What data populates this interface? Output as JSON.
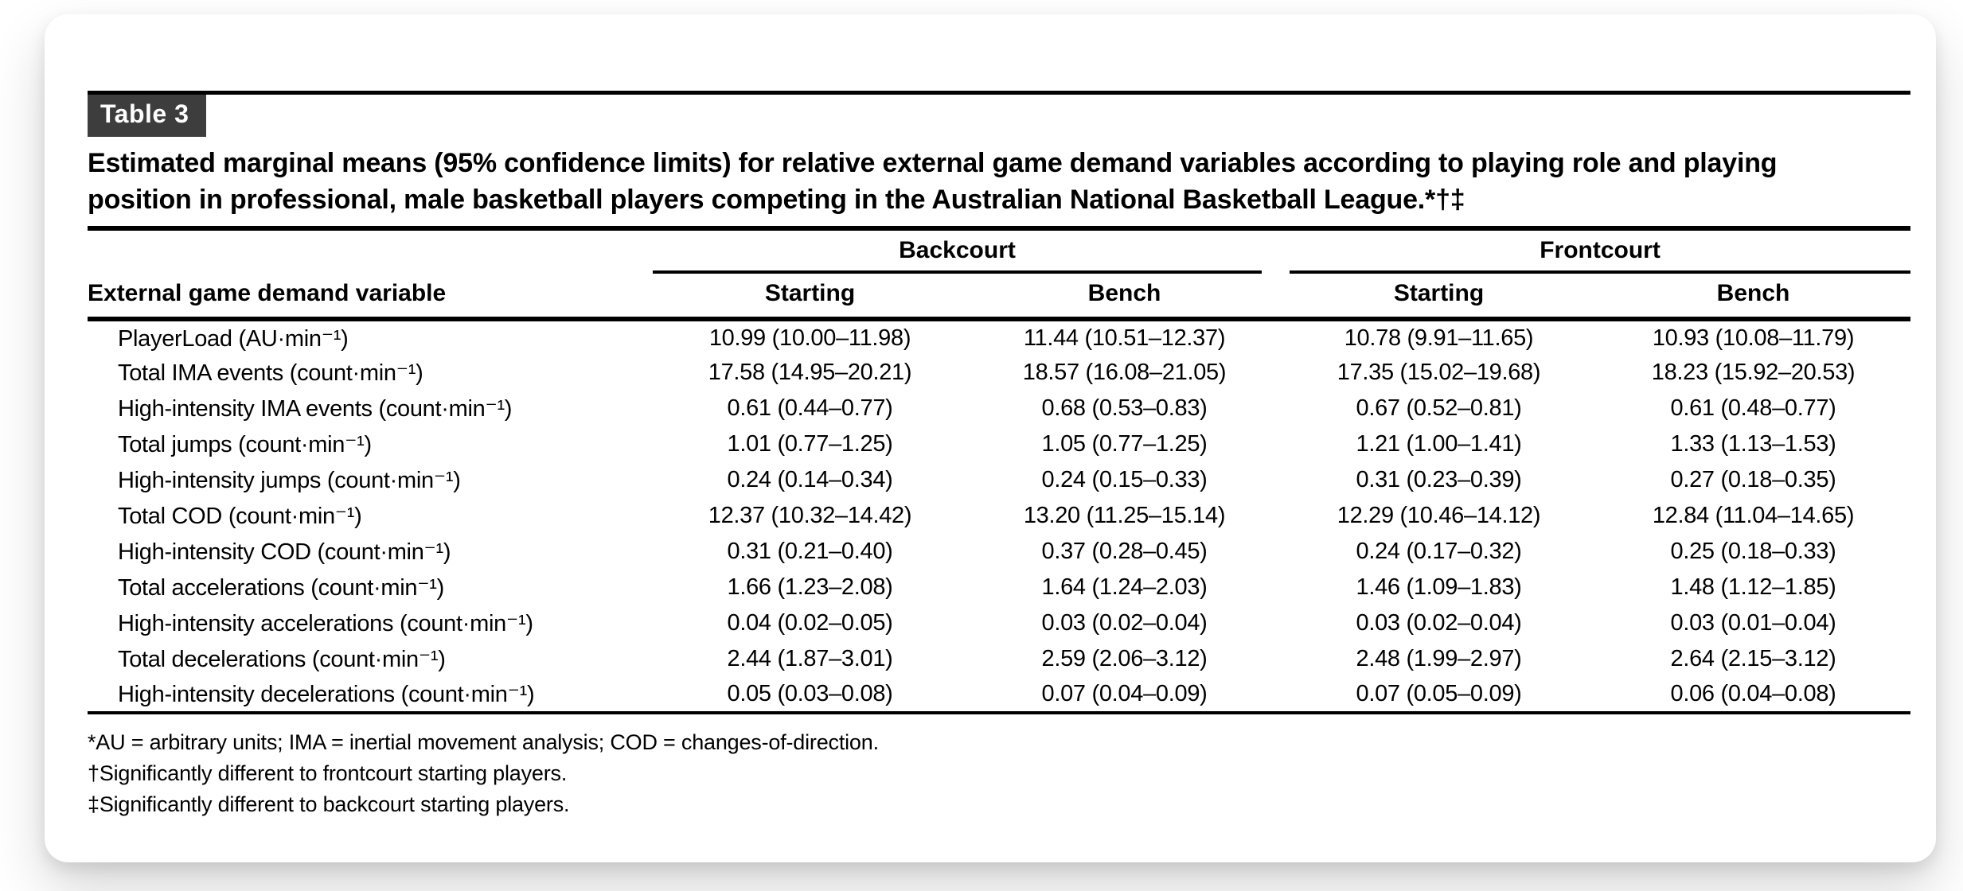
{
  "table": {
    "tag_label": "Table 3",
    "caption_line1": "Estimated marginal means (95% confidence limits) for relative external game demand variables according to playing role and playing",
    "caption_line2": "position in professional, male basketball players competing in the Australian National Basketball League.*†‡",
    "stub_header": "External game demand variable",
    "col_groups": [
      {
        "label": "Backcourt",
        "sub_columns": [
          "Starting",
          "Bench"
        ]
      },
      {
        "label": "Frontcourt",
        "sub_columns": [
          "Starting",
          "Bench"
        ]
      }
    ],
    "rows": [
      {
        "label": "PlayerLoad (AU·min⁻¹)",
        "values": [
          "10.99 (10.00–11.98)",
          "11.44 (10.51–12.37)",
          "10.78 (9.91–11.65)",
          "10.93 (10.08–11.79)"
        ]
      },
      {
        "label": "Total IMA events (count·min⁻¹)",
        "values": [
          "17.58 (14.95–20.21)",
          "18.57 (16.08–21.05)",
          "17.35 (15.02–19.68)",
          "18.23 (15.92–20.53)"
        ]
      },
      {
        "label": "High-intensity IMA events (count·min⁻¹)",
        "values": [
          "0.61 (0.44–0.77)",
          "0.68 (0.53–0.83)",
          "0.67 (0.52–0.81)",
          "0.61 (0.48–0.77)"
        ]
      },
      {
        "label": "Total jumps (count·min⁻¹)",
        "values": [
          "1.01 (0.77–1.25)",
          "1.05 (0.77–1.25)",
          "1.21 (1.00–1.41)",
          "1.33 (1.13–1.53)"
        ]
      },
      {
        "label": "High-intensity jumps (count·min⁻¹)",
        "values": [
          "0.24 (0.14–0.34)",
          "0.24 (0.15–0.33)",
          "0.31 (0.23–0.39)",
          "0.27 (0.18–0.35)"
        ]
      },
      {
        "label": "Total COD (count·min⁻¹)",
        "values": [
          "12.37 (10.32–14.42)",
          "13.20 (11.25–15.14)",
          "12.29 (10.46–14.12)",
          "12.84 (11.04–14.65)"
        ]
      },
      {
        "label": "High-intensity COD (count·min⁻¹)",
        "values": [
          "0.31 (0.21–0.40)",
          "0.37 (0.28–0.45)",
          "0.24 (0.17–0.32)",
          "0.25 (0.18–0.33)"
        ]
      },
      {
        "label": "Total accelerations (count·min⁻¹)",
        "values": [
          "1.66 (1.23–2.08)",
          "1.64 (1.24–2.03)",
          "1.46 (1.09–1.83)",
          "1.48 (1.12–1.85)"
        ]
      },
      {
        "label": "High-intensity accelerations (count·min⁻¹)",
        "values": [
          "0.04 (0.02–0.05)",
          "0.03 (0.02–0.04)",
          "0.03 (0.02–0.04)",
          "0.03 (0.01–0.04)"
        ]
      },
      {
        "label": "Total decelerations (count·min⁻¹)",
        "values": [
          "2.44 (1.87–3.01)",
          "2.59 (2.06–3.12)",
          "2.48 (1.99–2.97)",
          "2.64 (2.15–3.12)"
        ]
      },
      {
        "label": "High-intensity decelerations (count·min⁻¹)",
        "values": [
          "0.05 (0.03–0.08)",
          "0.07 (0.04–0.09)",
          "0.07 (0.05–0.09)",
          "0.06 (0.04–0.08)"
        ]
      }
    ],
    "footnotes": [
      "*AU = arbitrary units; IMA = inertial movement analysis; COD = changes-of-direction.",
      "†Significantly different to frontcourt starting players.",
      "‡Significantly different to backcourt starting players."
    ]
  },
  "colors": {
    "tag_background": "#3d3d3d",
    "tag_text": "#ffffff",
    "text": "#000000",
    "rule": "#000000",
    "card_background": "#ffffff",
    "page_background": "#ffffff"
  }
}
